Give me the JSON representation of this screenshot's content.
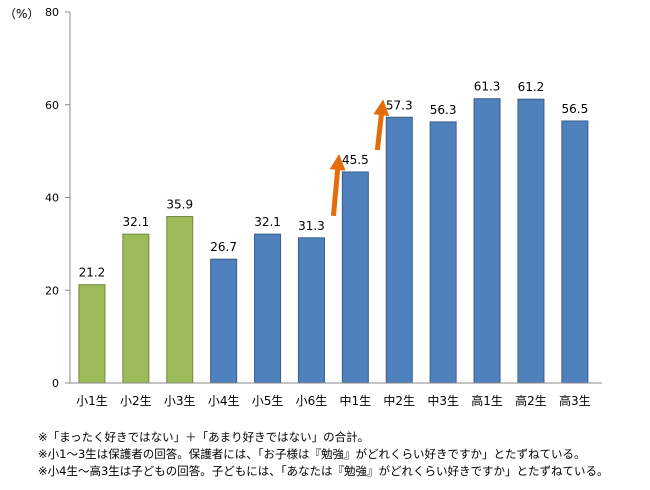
{
  "chart_data": {
    "type": "bar",
    "y_unit_label": "（%）",
    "ylim": [
      0,
      80
    ],
    "y_ticks": [
      0,
      20,
      40,
      60,
      80
    ],
    "grid": false,
    "categories": [
      "小1生",
      "小2生",
      "小3生",
      "小4生",
      "小5生",
      "小6生",
      "中1生",
      "中2生",
      "中3生",
      "高1生",
      "高2生",
      "高3生"
    ],
    "values": [
      21.2,
      32.1,
      35.9,
      26.7,
      32.1,
      31.3,
      45.5,
      57.3,
      56.3,
      61.3,
      61.2,
      56.5
    ],
    "bar_colors": [
      "#9bbb59",
      "#9bbb59",
      "#9bbb59",
      "#4f81bd",
      "#4f81bd",
      "#4f81bd",
      "#4f81bd",
      "#4f81bd",
      "#4f81bd",
      "#4f81bd",
      "#4f81bd",
      "#4f81bd"
    ],
    "bar_border_colors": [
      "#71893f",
      "#71893f",
      "#71893f",
      "#385d8a",
      "#385d8a",
      "#385d8a",
      "#385d8a",
      "#385d8a",
      "#385d8a",
      "#385d8a",
      "#385d8a",
      "#385d8a"
    ],
    "arrow_color": "#e46c0a",
    "arrow_annotations": [
      {
        "from_category": "小6生",
        "to_category": "中1生"
      },
      {
        "from_category": "中1生",
        "to_category": "中2生"
      }
    ]
  },
  "notes": [
    "※「まったく好きではない」＋「あまり好きではない」の合計。",
    "※小1～3生は保護者の回答。保護者には、「お子様は『勉強』がどれくらい好きですか」とたずねている。",
    "※小4生～高3生は子どもの回答。子どもには、「あなたは『勉強』がどれくらい好きですか」とたずねている。"
  ]
}
